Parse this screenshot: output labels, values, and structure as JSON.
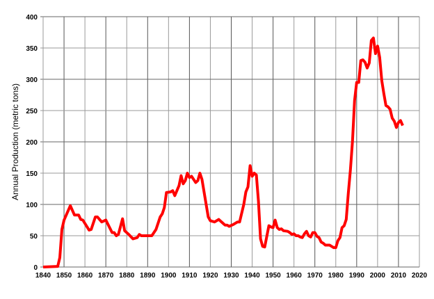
{
  "chart_data": {
    "type": "line",
    "title": "",
    "xlabel": "",
    "ylabel": "Annual Production (metric tons)",
    "xlim": [
      1840,
      2020
    ],
    "ylim": [
      0,
      400
    ],
    "grid": true,
    "line_color": "#ff0000",
    "xticks": [
      "1840",
      "1850",
      "1860",
      "1870",
      "1880",
      "1890",
      "1900",
      "1910",
      "1920",
      "1930",
      "1940",
      "1950",
      "1960",
      "1970",
      "1980",
      "1990",
      "2000",
      "2010",
      "2020"
    ],
    "yticks": [
      "0",
      "50",
      "100",
      "150",
      "200",
      "250",
      "300",
      "350",
      "400"
    ],
    "series": [
      {
        "x": [
          1840,
          1847,
          1848,
          1849,
          1850,
          1853,
          1855,
          1857,
          1858,
          1859,
          1862,
          1863,
          1865,
          1866,
          1868,
          1870,
          1873,
          1874,
          1875,
          1876,
          1878,
          1879,
          1881,
          1883,
          1885,
          1886,
          1887,
          1892,
          1894,
          1896,
          1897,
          1898,
          1899,
          1901,
          1902,
          1903,
          1905,
          1906,
          1907,
          1908,
          1909,
          1910,
          1911,
          1913,
          1914,
          1915,
          1916,
          1918,
          1919,
          1920,
          1922,
          1924,
          1926,
          1927,
          1928,
          1929,
          1931,
          1933,
          1934,
          1936,
          1937,
          1938,
          1939,
          1940,
          1941,
          1942,
          1943,
          1944,
          1945,
          1946,
          1948,
          1949,
          1950,
          1951,
          1952,
          1953,
          1954,
          1955,
          1957,
          1958,
          1959,
          1960,
          1961,
          1962,
          1963,
          1964,
          1965,
          1966,
          1967,
          1968,
          1969,
          1970,
          1971,
          1972,
          1973,
          1974,
          1975,
          1976,
          1977,
          1978,
          1979,
          1980,
          1981,
          1982,
          1983,
          1984,
          1985,
          1986,
          1987,
          1988,
          1989,
          1990,
          1991,
          1992,
          1993,
          1994,
          1995,
          1996,
          1997,
          1998,
          1999,
          2000,
          2001,
          2002,
          2003,
          2004,
          2005,
          2006,
          2007,
          2008,
          2009,
          2010,
          2011,
          2012
        ],
        "values": [
          0,
          1,
          15,
          60,
          75,
          98,
          83,
          83,
          76,
          75,
          59,
          60,
          80,
          80,
          72,
          75,
          55,
          55,
          50,
          52,
          77,
          58,
          52,
          45,
          47,
          52,
          50,
          50,
          60,
          80,
          85,
          95,
          119,
          120,
          122,
          114,
          130,
          146,
          133,
          138,
          150,
          143,
          145,
          135,
          138,
          150,
          140,
          100,
          80,
          74,
          72,
          76,
          70,
          67,
          67,
          65,
          68,
          72,
          72,
          100,
          120,
          128,
          162,
          145,
          150,
          147,
          105,
          45,
          33,
          32,
          66,
          64,
          63,
          75,
          63,
          60,
          61,
          58,
          57,
          55,
          52,
          53,
          50,
          50,
          48,
          47,
          53,
          57,
          50,
          48,
          55,
          55,
          49,
          47,
          40,
          38,
          35,
          35,
          35,
          33,
          31,
          31,
          42,
          47,
          63,
          66,
          76,
          118,
          155,
          201,
          266,
          295,
          295,
          330,
          331,
          327,
          318,
          326,
          362,
          366,
          341,
          353,
          335,
          298,
          277,
          258,
          256,
          252,
          238,
          233,
          223,
          231,
          234,
          226
        ]
      }
    ]
  }
}
